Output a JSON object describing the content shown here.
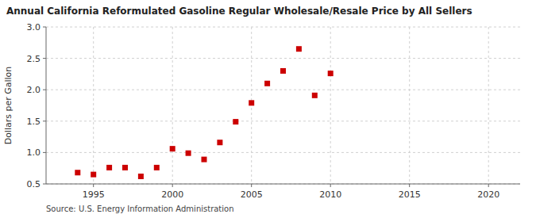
{
  "chart_data": {
    "type": "scatter",
    "title": "Annual California Reformulated Gasoline Regular Wholesale/Resale Price by All Sellers",
    "ylabel": "Dollars per Gallon",
    "source": "Source: U.S. Energy Information Administration",
    "x": [
      1994,
      1995,
      1996,
      1997,
      1998,
      1999,
      2000,
      2001,
      2002,
      2003,
      2004,
      2005,
      2006,
      2007,
      2008,
      2009,
      2010
    ],
    "values": [
      0.68,
      0.65,
      0.76,
      0.76,
      0.62,
      0.76,
      1.06,
      0.99,
      0.89,
      1.16,
      1.49,
      1.79,
      2.1,
      2.3,
      2.65,
      1.91,
      2.26
    ],
    "color": "#cc0000",
    "marker": "square",
    "xlim": [
      1992,
      2022
    ],
    "ylim": [
      0.5,
      3.0
    ],
    "xticks": [
      1995,
      2000,
      2005,
      2010,
      2015,
      2020
    ],
    "yticks": [
      0.5,
      {
        "value": 1.0,
        "label": "1.0"
      },
      1.5,
      {
        "value": 2.0,
        "label": "2.0"
      },
      2.5,
      {
        "value": 3.0,
        "label": "3.0"
      }
    ],
    "grid": true
  }
}
